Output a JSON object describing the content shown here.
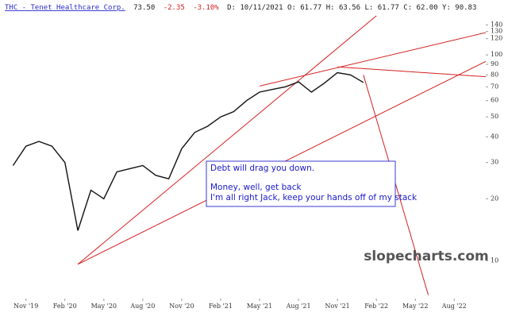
{
  "chart_data": {
    "type": "line",
    "header": {
      "symbol": "THC - Tenet Healthcare Corp.",
      "last": "73.50",
      "change": "-2.35",
      "change_pct": "-3.10%",
      "details": "D: 10/11/2021 O: 61.77 H: 63.56 L: 61.77 C: 62.00 Y: 90.83"
    },
    "annotation": [
      "Debt will drag you down.",
      "Money, well, get back",
      "I'm all right Jack, keep your hands off of my stack"
    ],
    "watermark": "slopecharts.com",
    "log_scale": true,
    "x": [
      "2019-10",
      "2019-11",
      "2019-12",
      "2020-01",
      "2020-02",
      "2020-03",
      "2020-04",
      "2020-05",
      "2020-06",
      "2020-07",
      "2020-08",
      "2020-09",
      "2020-10",
      "2020-11",
      "2020-12",
      "2021-01",
      "2021-02",
      "2021-03",
      "2021-04",
      "2021-05",
      "2021-06",
      "2021-07",
      "2021-08",
      "2021-09",
      "2021-10",
      "2021-11",
      "2021-12",
      "2022-01"
    ],
    "series": [
      {
        "name": "THC",
        "color": "#111111",
        "values": [
          29,
          36,
          38,
          36,
          30,
          14,
          22,
          20,
          27,
          28,
          29,
          26,
          25,
          35,
          42,
          45,
          50,
          53,
          60,
          66,
          68,
          70,
          74,
          66,
          73,
          82,
          80,
          73.5
        ]
      }
    ],
    "trendlines": [
      {
        "color": "#d42020",
        "x": [
          "2020-03",
          "2022-02"
        ],
        "values": [
          9.6,
          155
        ]
      },
      {
        "color": "#d42020",
        "x": [
          "2020-03",
          "2022-11"
        ],
        "values": [
          9.6,
          97
        ]
      },
      {
        "color": "#d42020",
        "x": [
          "2021-05",
          "2022-11"
        ],
        "values": [
          70.6,
          131
        ]
      },
      {
        "color": "#d42020",
        "x": [
          "2021-11",
          "2022-11"
        ],
        "values": [
          87.5,
          78
        ]
      },
      {
        "color": "#d42020",
        "x": [
          "2022-01",
          "2022-06"
        ],
        "values": [
          80,
          6.8
        ]
      }
    ],
    "xlim": [
      "2019-09",
      "2022-10"
    ],
    "xticks": [
      {
        "value": "2019-11",
        "label": "Nov '19"
      },
      {
        "value": "2020-02",
        "label": "Feb '20"
      },
      {
        "value": "2020-05",
        "label": "May '20"
      },
      {
        "value": "2020-08",
        "label": "Aug '20"
      },
      {
        "value": "2020-11",
        "label": "Nov '20"
      },
      {
        "value": "2021-02",
        "label": "Feb '21"
      },
      {
        "value": "2021-05",
        "label": "May '21"
      },
      {
        "value": "2021-08",
        "label": "Aug '21"
      },
      {
        "value": "2021-11",
        "label": "Nov '21"
      },
      {
        "value": "2022-02",
        "label": "Feb '22"
      },
      {
        "value": "2022-05",
        "label": "May '22"
      },
      {
        "value": "2022-08",
        "label": "Aug '22"
      }
    ],
    "ylim": [
      6.6,
      185
    ],
    "yticks": [
      10,
      20,
      30,
      40,
      50,
      60,
      70,
      80,
      90,
      100,
      120,
      130,
      140
    ]
  }
}
